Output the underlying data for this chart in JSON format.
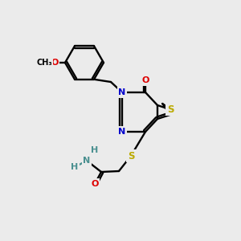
{
  "background_color": "#ebebeb",
  "atom_colors": {
    "C": "#000000",
    "N": "#0000cc",
    "O": "#dd0000",
    "S": "#bbaa00",
    "H": "#4a9090"
  },
  "bond_color": "#000000",
  "figsize": [
    3.0,
    3.0
  ],
  "dpi": 100
}
